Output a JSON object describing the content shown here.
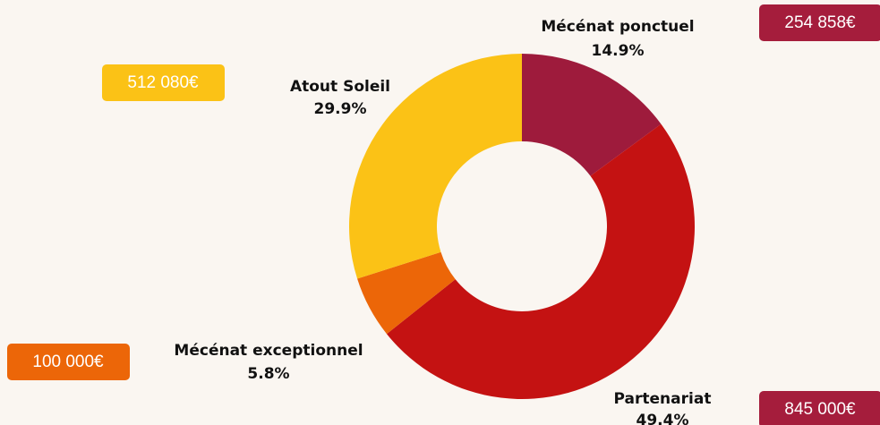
{
  "chart_data": {
    "type": "donut",
    "categories": [
      "Mécénat ponctuel",
      "Partenariat",
      "Mécénat exceptionnel",
      "Atout Soleil"
    ],
    "values": [
      14.9,
      49.4,
      5.8,
      29.9
    ],
    "value_labels": [
      "14.9%",
      "49.4%",
      "5.8%",
      "29.9%"
    ],
    "colors": [
      "#9e1b3c",
      "#c41212",
      "#ec6608",
      "#fbc216"
    ],
    "amount_labels": [
      "254 858€",
      "845 000€",
      "100 000€",
      "512 080€"
    ],
    "amount_colors": [
      "#a51d3c",
      "#a51d3c",
      "#ec6608",
      "#fbc216"
    ]
  }
}
